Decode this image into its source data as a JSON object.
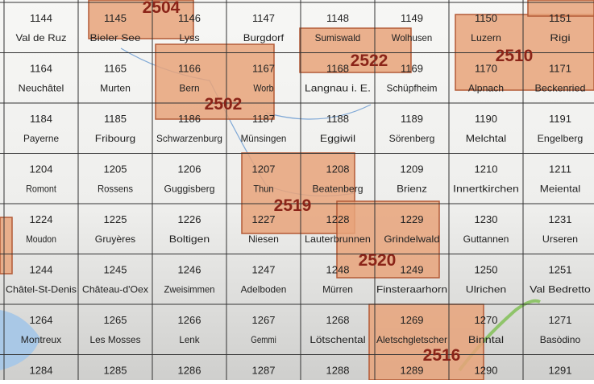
{
  "overlays": [
    {
      "label": "2504"
    },
    {
      "label": "2502"
    },
    {
      "label": "2522"
    },
    {
      "label": "2510"
    },
    {
      "label": "2519"
    },
    {
      "label": "2520"
    },
    {
      "label": "2516"
    }
  ],
  "sheets": [
    [
      {
        "number": "1144",
        "name": "Val de Ruz"
      },
      {
        "number": "1145",
        "name": "Bieler See"
      },
      {
        "number": "1146",
        "name": "Lyss"
      },
      {
        "number": "1147",
        "name": "Burgdorf"
      },
      {
        "number": "1148",
        "name": "Sumiswald"
      },
      {
        "number": "1149",
        "name": "Wolhusen"
      },
      {
        "number": "1150",
        "name": "Luzern"
      },
      {
        "number": "1151",
        "name": "Rigi"
      }
    ],
    [
      {
        "number": "1164",
        "name": "Neuchâtel"
      },
      {
        "number": "1165",
        "name": "Murten"
      },
      {
        "number": "1166",
        "name": "Bern"
      },
      {
        "number": "1167",
        "name": "Worb"
      },
      {
        "number": "1168",
        "name": "Langnau i. E."
      },
      {
        "number": "1169",
        "name": "Schüpfheim"
      },
      {
        "number": "1170",
        "name": "Alpnach"
      },
      {
        "number": "1171",
        "name": "Beckenried"
      }
    ],
    [
      {
        "number": "1184",
        "name": "Payerne"
      },
      {
        "number": "1185",
        "name": "Fribourg"
      },
      {
        "number": "1186",
        "name": "Schwarzenburg"
      },
      {
        "number": "1187",
        "name": "Münsingen"
      },
      {
        "number": "1188",
        "name": "Eggiwil"
      },
      {
        "number": "1189",
        "name": "Sörenberg"
      },
      {
        "number": "1190",
        "name": "Melchtal"
      },
      {
        "number": "1191",
        "name": "Engelberg"
      }
    ],
    [
      {
        "number": "1204",
        "name": "Romont"
      },
      {
        "number": "1205",
        "name": "Rossens"
      },
      {
        "number": "1206",
        "name": "Guggisberg"
      },
      {
        "number": "1207",
        "name": "Thun"
      },
      {
        "number": "1208",
        "name": "Beatenberg"
      },
      {
        "number": "1209",
        "name": "Brienz"
      },
      {
        "number": "1210",
        "name": "Innertkirchen"
      },
      {
        "number": "1211",
        "name": "Meiental"
      }
    ],
    [
      {
        "number": "1224",
        "name": "Moudon"
      },
      {
        "number": "1225",
        "name": "Gruyères"
      },
      {
        "number": "1226",
        "name": "Boltigen"
      },
      {
        "number": "1227",
        "name": "Niesen"
      },
      {
        "number": "1228",
        "name": "Lauterbrunnen"
      },
      {
        "number": "1229",
        "name": "Grindelwald"
      },
      {
        "number": "1230",
        "name": "Guttannen"
      },
      {
        "number": "1231",
        "name": "Urseren"
      }
    ],
    [
      {
        "number": "1244",
        "name": "Châtel-St-Denis"
      },
      {
        "number": "1245",
        "name": "Château-d'Oex"
      },
      {
        "number": "1246",
        "name": "Zweisimmen"
      },
      {
        "number": "1247",
        "name": "Adelboden"
      },
      {
        "number": "1248",
        "name": "Mürren"
      },
      {
        "number": "1249",
        "name": "Finsteraarhorn"
      },
      {
        "number": "1250",
        "name": "Ulrichen"
      },
      {
        "number": "1251",
        "name": "Val Bedretto"
      }
    ],
    [
      {
        "number": "1264",
        "name": "Montreux"
      },
      {
        "number": "1265",
        "name": "Les Mosses"
      },
      {
        "number": "1266",
        "name": "Lenk"
      },
      {
        "number": "1267",
        "name": "Gemmi"
      },
      {
        "number": "1268",
        "name": "Lötschental"
      },
      {
        "number": "1269",
        "name": "Aletschgletscher"
      },
      {
        "number": "1270",
        "name": "Binntal"
      },
      {
        "number": "1271",
        "name": "Basòdino"
      }
    ],
    [
      {
        "number": "1284"
      },
      {
        "number": "1285"
      },
      {
        "number": "1286"
      },
      {
        "number": "1287"
      },
      {
        "number": "1288"
      },
      {
        "number": "1289"
      },
      {
        "number": "1290"
      },
      {
        "number": "1291"
      }
    ]
  ]
}
